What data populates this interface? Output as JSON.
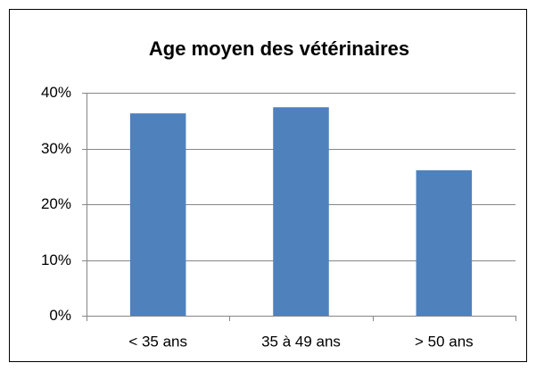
{
  "chart_data": {
    "type": "bar",
    "title": "Age moyen des vétérinaires",
    "categories": [
      "< 35 ans",
      "35 à 49 ans",
      "> 50 ans"
    ],
    "values": [
      36.3,
      37.4,
      26.1
    ],
    "color": "#4f81bd",
    "ylim": [
      0,
      40
    ],
    "yticks": [
      {
        "value": 0,
        "label": "0%"
      },
      {
        "value": 10,
        "label": "10%"
      },
      {
        "value": 20,
        "label": "20%"
      },
      {
        "value": 30,
        "label": "30%"
      },
      {
        "value": 40,
        "label": "40%"
      }
    ],
    "grid": true
  }
}
